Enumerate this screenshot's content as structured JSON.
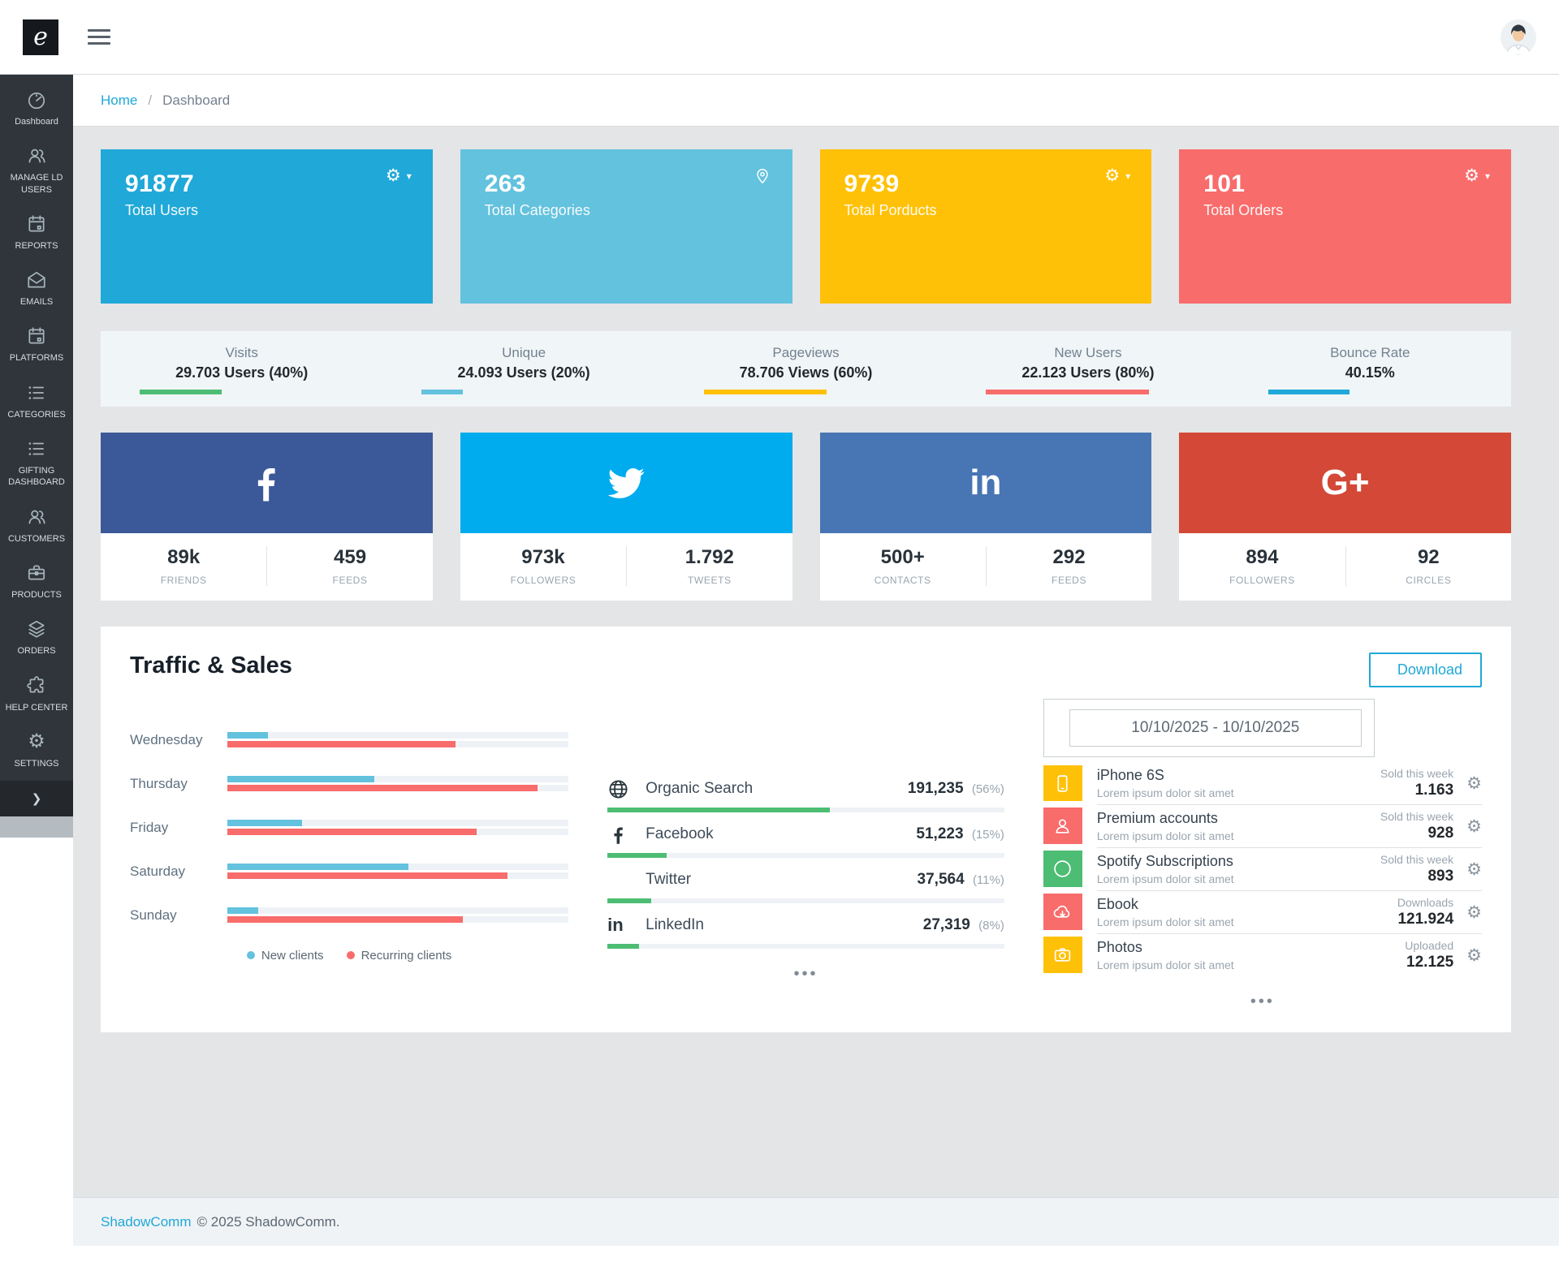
{
  "navbar": {
    "logo_letter": "e"
  },
  "breadcrumb": {
    "home": "Home",
    "separator": "/",
    "current": "Dashboard"
  },
  "sidebar": {
    "items": [
      {
        "label": "Dashboard",
        "icon": "speedometer-icon"
      },
      {
        "label": "MANAGE LD USERS",
        "icon": "users-icon"
      },
      {
        "label": "REPORTS",
        "icon": "calendar-icon"
      },
      {
        "label": "EMAILS",
        "icon": "mail-open-icon"
      },
      {
        "label": "PLATFORMS",
        "icon": "calendar-icon"
      },
      {
        "label": "CATEGORIES",
        "icon": "list-icon"
      },
      {
        "label": "GIFTING DASHBOARD",
        "icon": "list-icon"
      },
      {
        "label": "CUSTOMERS",
        "icon": "users-icon"
      },
      {
        "label": "PRODUCTS",
        "icon": "briefcase-icon"
      },
      {
        "label": "ORDERS",
        "icon": "layers-icon"
      },
      {
        "label": "HELP CENTER",
        "icon": "puzzle-icon"
      },
      {
        "label": "SETTINGS",
        "icon": "gear-icon"
      }
    ]
  },
  "stat_cards": [
    {
      "value": "91877",
      "label": "Total Users",
      "color": "#20a8d8",
      "icon": "gear-icon",
      "has_caret": true
    },
    {
      "value": "263",
      "label": "Total Categories",
      "color": "#63c2de",
      "icon": "map-pin-icon",
      "has_caret": false
    },
    {
      "value": "9739",
      "label": "Total Porducts",
      "color": "#ffc107",
      "icon": "gear-icon",
      "has_caret": true
    },
    {
      "value": "101",
      "label": "Total Orders",
      "color": "#f86c6b",
      "icon": "gear-icon",
      "has_caret": true
    }
  ],
  "metrics": [
    {
      "label": "Visits",
      "value": "29.703 Users (40%)",
      "pct": 40,
      "color": "#4dbd74"
    },
    {
      "label": "Unique",
      "value": "24.093 Users (20%)",
      "pct": 20,
      "color": "#63c2de"
    },
    {
      "label": "Pageviews",
      "value": "78.706 Views (60%)",
      "pct": 60,
      "color": "#ffc107"
    },
    {
      "label": "New Users",
      "value": "22.123 Users (80%)",
      "pct": 80,
      "color": "#f86c6b"
    },
    {
      "label": "Bounce Rate",
      "value": "40.15%",
      "pct": 40,
      "color": "#20a8d8"
    }
  ],
  "social_cards": [
    {
      "network": "facebook",
      "icon": "facebook-icon",
      "color": "#3b5998",
      "stats": [
        {
          "value": "89k",
          "label": "FRIENDS"
        },
        {
          "value": "459",
          "label": "FEEDS"
        }
      ]
    },
    {
      "network": "twitter",
      "icon": "twitter-icon",
      "color": "#00aced",
      "stats": [
        {
          "value": "973k",
          "label": "FOLLOWERS"
        },
        {
          "value": "1.792",
          "label": "TWEETS"
        }
      ]
    },
    {
      "network": "linkedin",
      "icon": "linkedin-icon",
      "color": "#4875b4",
      "stats": [
        {
          "value": "500+",
          "label": "CONTACTS"
        },
        {
          "value": "292",
          "label": "FEEDS"
        }
      ]
    },
    {
      "network": "googleplus",
      "icon": "gplus-icon",
      "color": "#d34836",
      "stats": [
        {
          "value": "894",
          "label": "FOLLOWERS"
        },
        {
          "value": "92",
          "label": "CIRCLES"
        }
      ]
    }
  ],
  "traffic": {
    "title": "Traffic & Sales",
    "download_label": "Download",
    "date_range": "10/10/2025 - 10/10/2025",
    "ellipsis": "•••",
    "legend": [
      {
        "label": "New clients",
        "color": "#63c2de"
      },
      {
        "label": "Recurring clients",
        "color": "#f86c6b"
      }
    ],
    "chart_data": {
      "type": "bar",
      "orientation": "horizontal",
      "categories": [
        "Wednesday",
        "Thursday",
        "Friday",
        "Saturday",
        "Sunday"
      ],
      "series": [
        {
          "name": "New clients",
          "color": "#63c2de",
          "values": [
            12,
            43,
            22,
            53,
            9
          ]
        },
        {
          "name": "Recurring clients",
          "color": "#f86c6b",
          "values": [
            67,
            91,
            73,
            82,
            69
          ]
        }
      ],
      "xlim": [
        0,
        100
      ],
      "unit": "percent",
      "grid": false,
      "legend_position": "bottom"
    },
    "channels": [
      {
        "name": "Organic Search",
        "icon": "globe-icon",
        "value": "191,235",
        "pct_label": "(56%)",
        "pct": 56
      },
      {
        "name": "Facebook",
        "icon": "facebook-outline-icon",
        "value": "51,223",
        "pct_label": "(15%)",
        "pct": 15
      },
      {
        "name": "Twitter",
        "icon": "twitter-outline-icon",
        "value": "37,564",
        "pct_label": "(11%)",
        "pct": 11
      },
      {
        "name": "LinkedIn",
        "icon": "linkedin-outline-icon",
        "value": "27,319",
        "pct_label": "(8%)",
        "pct": 8
      }
    ],
    "channel_bar_color": "#4dbd74",
    "products": [
      {
        "name": "iPhone 6S",
        "description": "Lorem ipsum dolor sit amet",
        "metric_label": "Sold this week",
        "metric_value": "1.163",
        "tile_color": "#ffc107",
        "icon": "phone-icon"
      },
      {
        "name": "Premium accounts",
        "description": "Lorem ipsum dolor sit amet",
        "metric_label": "Sold this week",
        "metric_value": "928",
        "tile_color": "#f86c6b",
        "icon": "user-icon"
      },
      {
        "name": "Spotify Subscriptions",
        "description": "Lorem ipsum dolor sit amet",
        "metric_label": "Sold this week",
        "metric_value": "893",
        "tile_color": "#4dbd74",
        "icon": "spotify-icon"
      },
      {
        "name": "Ebook",
        "description": "Lorem ipsum dolor sit amet",
        "metric_label": "Downloads",
        "metric_value": "121.924",
        "tile_color": "#f86c6b",
        "icon": "cloud-download-icon"
      },
      {
        "name": "Photos",
        "description": "Lorem ipsum dolor sit amet",
        "metric_label": "Uploaded",
        "metric_value": "12.125",
        "tile_color": "#ffc107",
        "icon": "camera-icon"
      }
    ]
  },
  "footer": {
    "brand": "ShadowComm",
    "text": "© 2025 ShadowComm."
  }
}
